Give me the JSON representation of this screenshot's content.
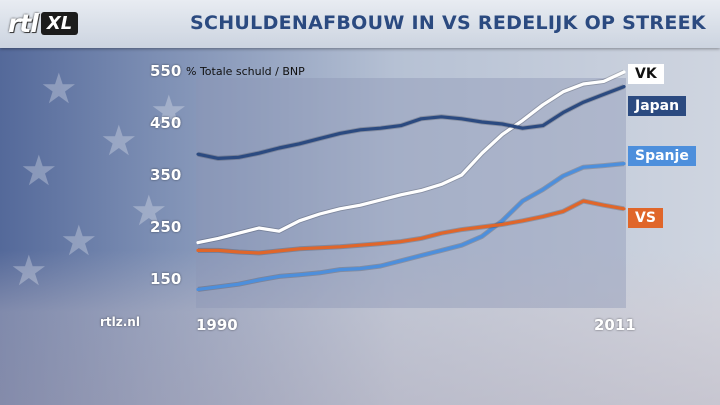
{
  "header": {
    "logo_rtl": "rtl",
    "logo_xl": "XL",
    "title": "SCHULDENAFBOUW IN VS REDELIJK OP STREEK"
  },
  "source": "rtlz.nl",
  "colors": {
    "vk": "#ffffff",
    "japan": "#2b4a80",
    "spanje": "#4d8fdc",
    "vs": "#e0662a"
  },
  "chart_data": {
    "type": "line",
    "ylabel": "% Totale schuld / BNP",
    "yticks": [
      150,
      250,
      350,
      450,
      550
    ],
    "ylim": [
      100,
      560
    ],
    "xlim": [
      1990,
      2011
    ],
    "xtick_labels": [
      "1990",
      "2011"
    ],
    "x": [
      1990,
      1991,
      1992,
      1993,
      1994,
      1995,
      1996,
      1997,
      1998,
      1999,
      2000,
      2001,
      2002,
      2003,
      2004,
      2005,
      2006,
      2007,
      2008,
      2009,
      2010,
      2011
    ],
    "series": [
      {
        "name": "VK",
        "color": "#ffffff",
        "values": [
          220,
          228,
          238,
          248,
          242,
          262,
          275,
          285,
          292,
          302,
          312,
          320,
          332,
          350,
          392,
          428,
          455,
          485,
          510,
          525,
          530,
          548
        ]
      },
      {
        "name": "Japan",
        "color": "#2b4a80",
        "values": [
          390,
          382,
          384,
          392,
          402,
          410,
          420,
          430,
          437,
          440,
          445,
          458,
          462,
          458,
          452,
          448,
          440,
          445,
          470,
          490,
          505,
          520
        ]
      },
      {
        "name": "Spanje",
        "color": "#4d8fdc",
        "values": [
          130,
          135,
          140,
          148,
          155,
          158,
          162,
          168,
          170,
          175,
          185,
          195,
          205,
          215,
          232,
          262,
          300,
          322,
          348,
          365,
          368,
          372
        ]
      },
      {
        "name": "VS",
        "color": "#e0662a",
        "values": [
          205,
          205,
          202,
          200,
          204,
          208,
          210,
          212,
          215,
          218,
          222,
          228,
          238,
          245,
          250,
          255,
          262,
          270,
          280,
          300,
          292,
          285
        ]
      }
    ]
  }
}
